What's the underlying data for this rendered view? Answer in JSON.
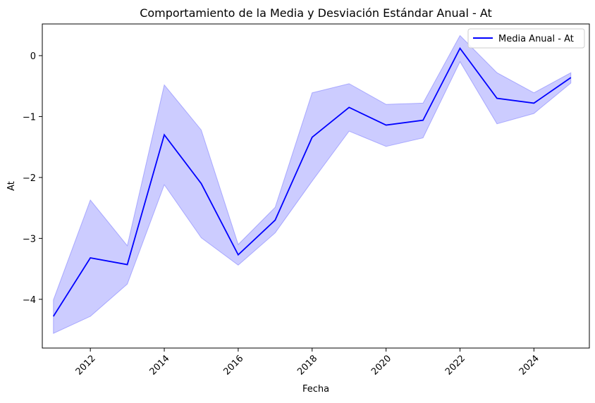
{
  "chart_data": {
    "type": "line",
    "title": "Comportamiento de la Media y Desviación Estándar Anual - At",
    "xlabel": "Fecha",
    "ylabel": "At",
    "xlim": [
      2010.7,
      2025.5
    ],
    "ylim": [
      -4.8,
      0.52
    ],
    "xticks": [
      2012,
      2014,
      2016,
      2018,
      2020,
      2022,
      2024
    ],
    "xtick_labels": [
      "2012",
      "2014",
      "2016",
      "2018",
      "2020",
      "2022",
      "2024"
    ],
    "yticks": [
      0,
      -1,
      -2,
      -3,
      -4
    ],
    "ytick_labels": [
      "0",
      "−1",
      "−2",
      "−3",
      "−4"
    ],
    "grid": false,
    "legend_position": "top-right",
    "series": [
      {
        "name": "Media Anual - At",
        "color": "#0000ff",
        "x": [
          2011,
          2012,
          2013,
          2014,
          2015,
          2016,
          2017,
          2018,
          2019,
          2020,
          2021,
          2022,
          2023,
          2024,
          2025
        ],
        "y": [
          -4.28,
          -3.32,
          -3.43,
          -1.3,
          -2.1,
          -3.27,
          -2.7,
          -1.34,
          -0.85,
          -1.14,
          -1.06,
          0.12,
          -0.7,
          -0.78,
          -0.36
        ]
      }
    ],
    "band": {
      "color": "#0000ff",
      "opacity": 0.2,
      "lower": [
        -4.56,
        -4.28,
        -3.75,
        -2.12,
        -2.99,
        -3.44,
        -2.91,
        -2.06,
        -1.24,
        -1.49,
        -1.35,
        -0.1,
        -1.12,
        -0.95,
        -0.45
      ],
      "upper": [
        -4.01,
        -2.37,
        -3.12,
        -0.48,
        -1.22,
        -3.1,
        -2.49,
        -0.61,
        -0.46,
        -0.8,
        -0.78,
        0.33,
        -0.28,
        -0.61,
        -0.28
      ]
    }
  }
}
